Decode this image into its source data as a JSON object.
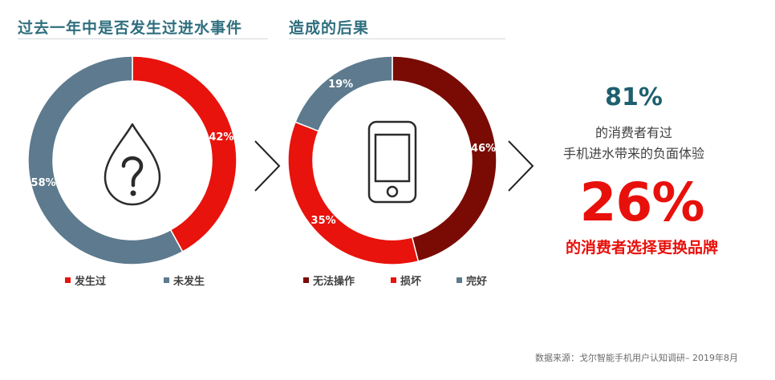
{
  "chart_data": [
    {
      "type": "pie",
      "title": "过去一年中是否发生过进水事件",
      "categories": [
        "发生过",
        "未发生"
      ],
      "values": [
        42,
        58
      ],
      "value_labels": [
        "42%",
        "58%"
      ],
      "colors": [
        "#e8130c",
        "#5d7a8e"
      ],
      "legend": "bottom"
    },
    {
      "type": "pie",
      "title": "造成的后果",
      "categories": [
        "无法操作",
        "损坏",
        "完好"
      ],
      "values": [
        46,
        35,
        19
      ],
      "value_labels": [
        "46%",
        "35%",
        "19%"
      ],
      "colors": [
        "#7a0b04",
        "#e8130c",
        "#5d7a8e"
      ],
      "legend": "bottom"
    }
  ],
  "summary": {
    "stat1_value": "81%",
    "stat1_line1": "的消费者有过",
    "stat1_line2": "手机进水带来的负面体验",
    "stat2_value": "26%",
    "stat2_line": "的消费者选择更换品牌"
  },
  "source": "数据来源：戈尔智能手机用户认知调研– 2019年8月",
  "icons": {
    "chart1_center": "water-drop-question-icon",
    "chart2_center": "smartphone-icon",
    "separator": "chevron-right-icon"
  },
  "colors": {
    "title": "#2f6f7e",
    "accent_red": "#e8100b",
    "dark_red": "#7a0b04",
    "slate": "#5d7a8e"
  }
}
